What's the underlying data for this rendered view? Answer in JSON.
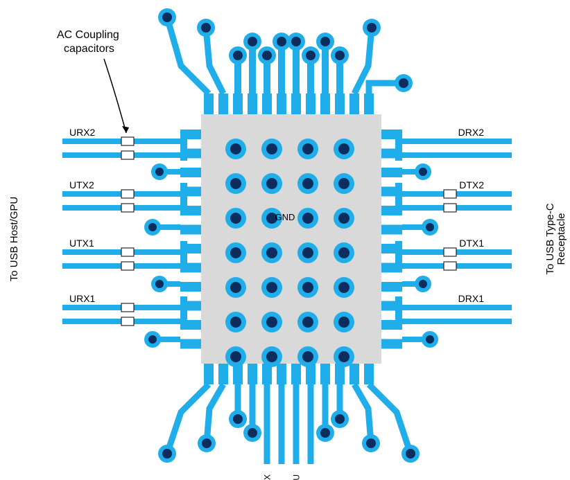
{
  "colors": {
    "trace": "#20aeea",
    "via_outer": "#20aeea",
    "via_inner": "#0d2d5f",
    "pad_bg": "#d9d9d9",
    "text": "#000000",
    "cap_fill": "#ffffff",
    "cap_stroke": "#000000"
  },
  "text": {
    "left_vertical": "To USB Host/GPU",
    "right_vertical_1": "To USB Type-C",
    "right_vertical_2": "Receptacle",
    "annotation_line1": "AC Coupling",
    "annotation_line2": "capacitors",
    "gnd": "GND"
  },
  "left_ports": [
    "URX2",
    "UTX2",
    "UTX1",
    "URX1"
  ],
  "right_ports": [
    "DRX2",
    "DTX2",
    "DTX1",
    "DRX1"
  ],
  "bottom_labels": [
    "AUX",
    "SBU"
  ],
  "grid": {
    "rows": 7,
    "cols": 4
  },
  "font": {
    "label_size": 14,
    "annotation_size": 16,
    "vertical_size": 15,
    "gnd_size": 13,
    "bottom_size": 12
  }
}
